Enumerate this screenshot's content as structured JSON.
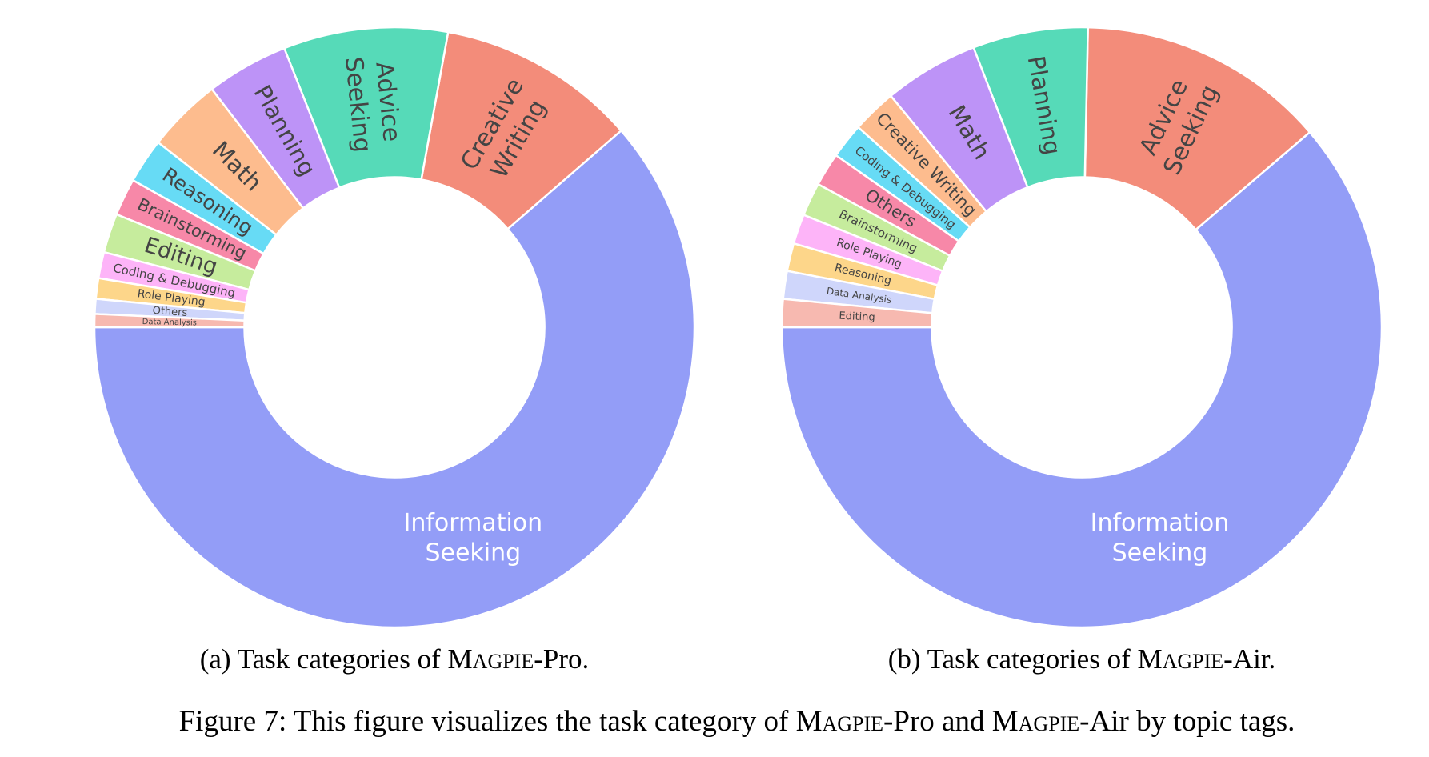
{
  "chart_data": [
    {
      "type": "pie",
      "hole": 0.5,
      "caption_prefix": "(a) Task categories of ",
      "caption_name": "M",
      "caption_name_small": "AGPIE",
      "caption_suffix": "-Pro.",
      "slices": [
        {
          "label": "Information Seeking",
          "lines": [
            "Information",
            "Seeking"
          ],
          "value": 61.0,
          "color": "#939DF7",
          "text_color": "#ffffff",
          "font": 30
        },
        {
          "label": "Creative Writing",
          "lines": [
            "Creative",
            "Writing"
          ],
          "value": 10.7,
          "color": "#F38C7A",
          "text_color": "#444444",
          "font": 30
        },
        {
          "label": "Advice Seeking",
          "lines": [
            "Advice",
            "Seeking"
          ],
          "value": 8.8,
          "color": "#56DAB8",
          "text_color": "#444444",
          "font": 30
        },
        {
          "label": "Planning",
          "lines": [
            "Planning"
          ],
          "value": 4.4,
          "color": "#BD93F7",
          "text_color": "#444444",
          "font": 29
        },
        {
          "label": "Math",
          "lines": [
            "Math"
          ],
          "value": 4.0,
          "color": "#FDBC8E",
          "text_color": "#444444",
          "font": 29
        },
        {
          "label": "Reasoning",
          "lines": [
            "Reasoning"
          ],
          "value": 2.4,
          "color": "#67DBF5",
          "text_color": "#444444",
          "font": 25
        },
        {
          "label": "Brainstorming",
          "lines": [
            "Brainstorming"
          ],
          "value": 2.0,
          "color": "#F788A8",
          "text_color": "#444444",
          "font": 21
        },
        {
          "label": "Editing",
          "lines": [
            "Editing"
          ],
          "value": 2.1,
          "color": "#C6EC9D",
          "text_color": "#444444",
          "font": 27
        },
        {
          "label": "Coding & Debugging",
          "lines": [
            "Coding & Debugging"
          ],
          "value": 1.4,
          "color": "#FDB4F8",
          "text_color": "#444444",
          "font": 15
        },
        {
          "label": "Role Playing",
          "lines": [
            "Role Playing"
          ],
          "value": 1.1,
          "color": "#FDD68A",
          "text_color": "#444444",
          "font": 14
        },
        {
          "label": "Others",
          "lines": [
            "Others"
          ],
          "value": 0.8,
          "color": "#CFD6FB",
          "text_color": "#444444",
          "font": 13
        },
        {
          "label": "Data Analysis",
          "lines": [
            "Data Analysis"
          ],
          "value": 0.7,
          "color": "#F7B9B0",
          "text_color": "#444444",
          "font": 10
        }
      ]
    },
    {
      "type": "pie",
      "hole": 0.5,
      "caption_prefix": "(b) Task categories of ",
      "caption_name": "M",
      "caption_name_small": "AGPIE",
      "caption_suffix": "-Air.",
      "slices": [
        {
          "label": "Information Seeking",
          "lines": [
            "Information",
            "Seeking"
          ],
          "value": 61.2,
          "color": "#939DF7",
          "text_color": "#ffffff",
          "font": 30
        },
        {
          "label": "Advice Seeking",
          "lines": [
            "Advice",
            "Seeking"
          ],
          "value": 13.4,
          "color": "#F38C7A",
          "text_color": "#444444",
          "font": 30
        },
        {
          "label": "Planning",
          "lines": [
            "Planning"
          ],
          "value": 6.2,
          "color": "#56DAB8",
          "text_color": "#444444",
          "font": 29
        },
        {
          "label": "Math",
          "lines": [
            "Math"
          ],
          "value": 5.1,
          "color": "#BD93F7",
          "text_color": "#444444",
          "font": 29
        },
        {
          "label": "Creative Writing",
          "lines": [
            "Creative Writing"
          ],
          "value": 2.4,
          "color": "#FDBC8E",
          "text_color": "#444444",
          "font": 21
        },
        {
          "label": "Coding & Debugging",
          "lines": [
            "Coding & Debugging"
          ],
          "value": 1.9,
          "color": "#67DBF5",
          "text_color": "#444444",
          "font": 15
        },
        {
          "label": "Others",
          "lines": [
            "Others"
          ],
          "value": 1.8,
          "color": "#F788A8",
          "text_color": "#444444",
          "font": 21
        },
        {
          "label": "Brainstorming",
          "lines": [
            "Brainstorming"
          ],
          "value": 1.8,
          "color": "#C6EC9D",
          "text_color": "#444444",
          "font": 15
        },
        {
          "label": "Role Playing",
          "lines": [
            "Role Playing"
          ],
          "value": 1.6,
          "color": "#FDB4F8",
          "text_color": "#444444",
          "font": 14
        },
        {
          "label": "Reasoning",
          "lines": [
            "Reasoning"
          ],
          "value": 1.5,
          "color": "#FDD68A",
          "text_color": "#444444",
          "font": 14
        },
        {
          "label": "Data Analysis",
          "lines": [
            "Data Analysis"
          ],
          "value": 1.5,
          "color": "#CFD6FB",
          "text_color": "#444444",
          "font": 12
        },
        {
          "label": "Editing",
          "lines": [
            "Editing"
          ],
          "value": 1.5,
          "color": "#F7B9B0",
          "text_color": "#444444",
          "font": 13
        }
      ]
    }
  ],
  "figure_caption": {
    "prefix": "Figure 7: This figure visualizes the task category of ",
    "name1": "M",
    "name1_small": "AGPIE",
    "mid": "-Pro and ",
    "name2": "M",
    "name2_small": "AGPIE",
    "suffix": "-Air by topic tags."
  }
}
